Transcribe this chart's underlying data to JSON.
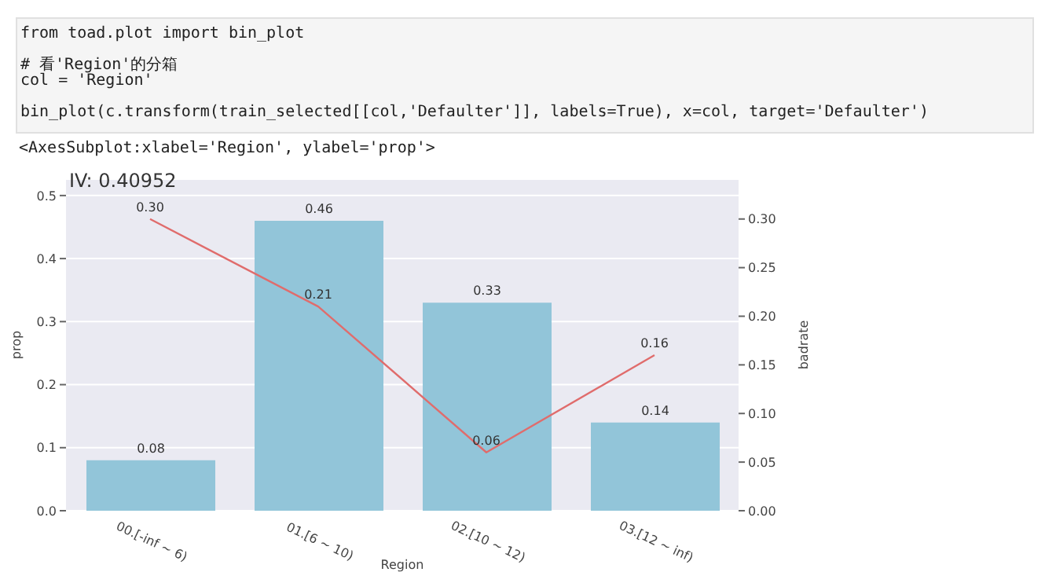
{
  "chart_data": {
    "type": "bar",
    "title": "IV: 0.40952",
    "xlabel": "Region",
    "ylabel": "prop",
    "y2label": "badrate",
    "annotations": [
      "from toad.plot import bin_plot",
      "# 看'Region'的分箱",
      "col = 'Region'",
      "bin_plot(c.transform(train_selected[[col,'Defaulter']], labels=True), x=col, target='Defaulter')",
      "<AxesSubplot:xlabel='Region', ylabel='prop'>"
    ],
    "categories": [
      "00.[-inf ~ 6)",
      "01.[6 ~ 10)",
      "02.[10 ~ 12)",
      "03.[12 ~ inf)"
    ],
    "series": [
      {
        "color": "#92c5d9",
        "values": [
          0.08,
          0.46,
          0.33,
          0.14
        ],
        "value_labels": [
          "0.08",
          "0.46",
          "0.33",
          "0.14"
        ]
      },
      {
        "type": "line",
        "axis": "y2",
        "color": "#e06c6c",
        "values": [
          0.3,
          0.21,
          0.06,
          0.16
        ],
        "value_labels": [
          "0.30",
          "0.21",
          "0.06",
          "0.16"
        ]
      }
    ],
    "ylim": [
      0,
      0.526
    ],
    "yticks": [
      {
        "value": 0,
        "label": "0.0"
      },
      0.1,
      0.2,
      0.3,
      0.4,
      0.5
    ],
    "y2lim": [
      0,
      0.341
    ],
    "y2ticks": [
      {
        "value": 0,
        "label": "0.00"
      },
      0.05,
      {
        "value": 0.1,
        "label": "0.10"
      },
      0.15,
      {
        "value": 0.2,
        "label": "0.20"
      },
      0.25,
      {
        "value": 0.3,
        "label": "0.30"
      }
    ],
    "grid": "y"
  }
}
